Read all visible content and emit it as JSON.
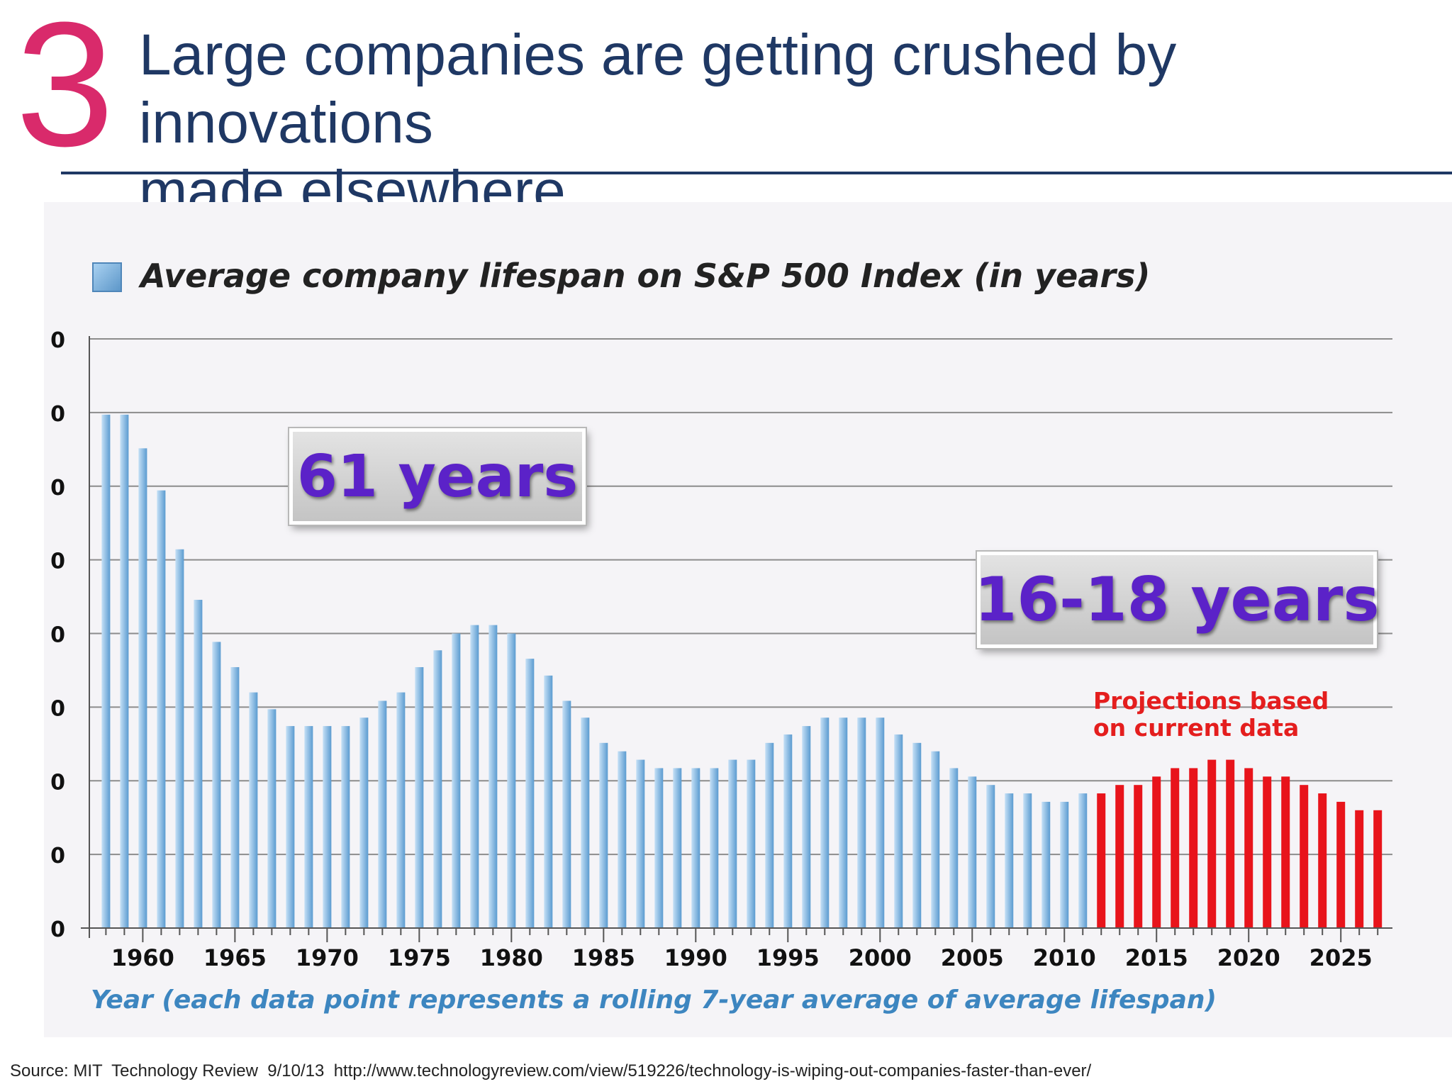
{
  "slide": {
    "number": "3",
    "title": "Large companies are getting crushed by innovations\nmade elsewhere",
    "source": "Source: MIT  Technology Review  9/10/13  http://www.technologyreview.com/view/519226/technology-is-wiping-out-companies-faster-than-ever/"
  },
  "callouts": {
    "early": "61 years",
    "recent": "16-18 years",
    "projection_note": "Projections based\non current data"
  },
  "colors": {
    "slide_number": "#d92a6b",
    "title": "#1f3864",
    "historical_bar": "#5b9bd0",
    "projection_bar": "#e8141b",
    "callout_text": "#5b22c8",
    "axis_title": "#3d86c0"
  },
  "chart_data": {
    "type": "bar",
    "legend": "Average company lifespan on S&P 500 Index (in years)",
    "legend_position": "top-left",
    "xlabel": "Year (each data point represents a rolling 7-year average of average lifespan)",
    "y_tick_labels": [
      "0",
      "0",
      "0",
      "0",
      "0",
      "0",
      "0",
      "0"
    ],
    "x_tick_labels": [
      "1960",
      "1965",
      "1970",
      "1975",
      "1980",
      "1985",
      "1990",
      "1995",
      "2000",
      "2005",
      "2010",
      "2015",
      "2020",
      "2025"
    ],
    "grid": true,
    "x": [
      1958,
      1959,
      1960,
      1961,
      1962,
      1963,
      1964,
      1965,
      1966,
      1967,
      1968,
      1969,
      1970,
      1971,
      1972,
      1973,
      1974,
      1975,
      1976,
      1977,
      1978,
      1979,
      1980,
      1981,
      1982,
      1983,
      1984,
      1985,
      1986,
      1987,
      1988,
      1989,
      1990,
      1991,
      1992,
      1993,
      1994,
      1995,
      1996,
      1997,
      1998,
      1999,
      2000,
      2001,
      2002,
      2003,
      2004,
      2005,
      2006,
      2007,
      2008,
      2009,
      2010,
      2011,
      2012,
      2013,
      2014,
      2015,
      2016,
      2017,
      2018,
      2019,
      2020,
      2021,
      2022,
      2023,
      2024,
      2025,
      2026,
      2027
    ],
    "values": [
      61,
      61,
      57,
      52,
      45,
      39,
      34,
      31,
      28,
      26,
      24,
      24,
      24,
      24,
      25,
      27,
      28,
      31,
      33,
      35,
      36,
      36,
      35,
      32,
      30,
      27,
      25,
      22,
      21,
      20,
      19,
      19,
      19,
      19,
      20,
      20,
      22,
      23,
      24,
      25,
      25,
      25,
      25,
      23,
      22,
      21,
      19,
      18,
      17,
      16,
      16,
      15,
      15,
      16,
      16,
      17,
      17,
      18,
      19,
      19,
      20,
      20,
      19,
      18,
      18,
      17,
      16,
      15,
      14,
      14
    ],
    "series": [
      {
        "name": "",
        "x_from": 1958,
        "x_to": 2011
      },
      {
        "name": "Projections based on current data",
        "x_from": 2012,
        "x_to": 2027
      }
    ],
    "xlim": [
      1957.1,
      2027.8
    ],
    "ylim": [
      0,
      70
    ]
  }
}
